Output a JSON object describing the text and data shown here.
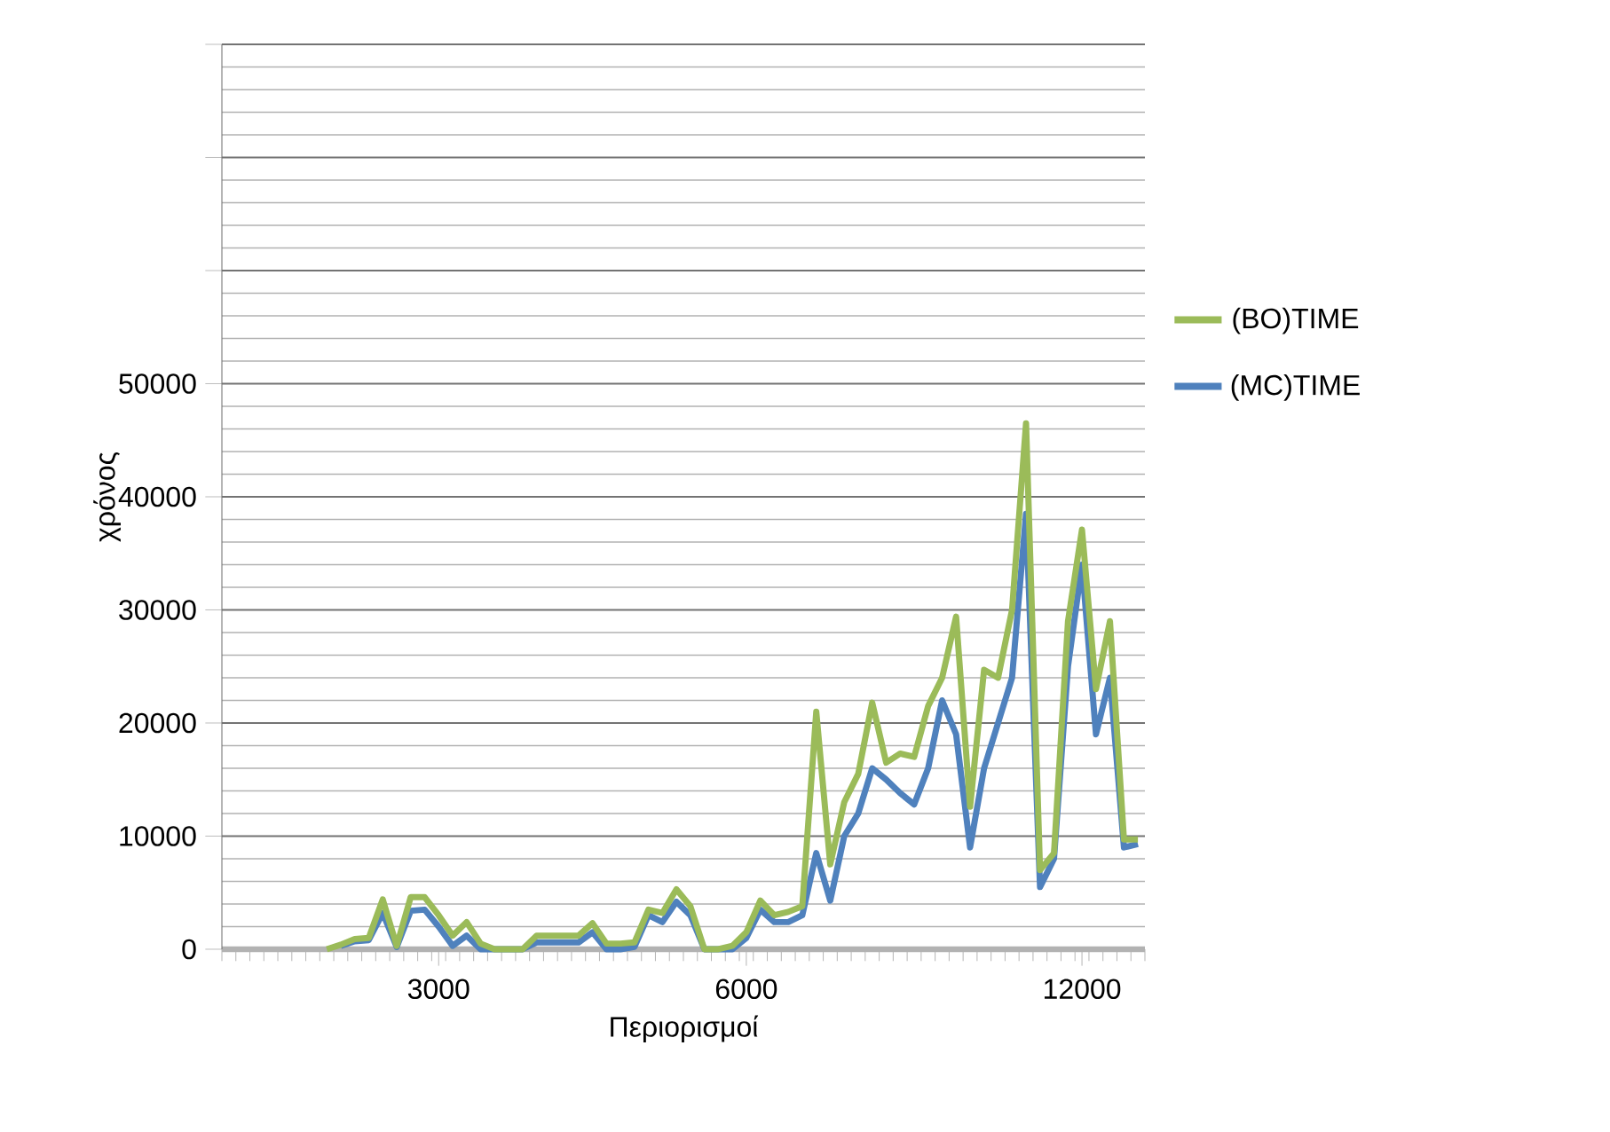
{
  "chart_data": {
    "type": "line",
    "xlabel": "Περιορισμοί",
    "ylabel": "χρόνος",
    "categories": [
      null,
      null,
      null,
      null,
      null,
      null,
      null,
      null,
      null,
      null,
      null,
      null,
      null,
      null,
      null,
      "3000",
      null,
      null,
      null,
      null,
      null,
      null,
      null,
      null,
      null,
      null,
      null,
      null,
      null,
      null,
      null,
      null,
      null,
      null,
      null,
      null,
      null,
      "6000",
      null,
      null,
      null,
      null,
      null,
      null,
      null,
      null,
      null,
      null,
      null,
      null,
      null,
      null,
      null,
      null,
      null,
      null,
      null,
      null,
      null,
      null,
      null,
      "12000",
      null,
      null,
      null,
      null
    ],
    "series": [
      {
        "name": "(BO)TIME",
        "color": "#9bbb59",
        "values": [
          null,
          null,
          null,
          null,
          null,
          null,
          null,
          0,
          400,
          900,
          1000,
          4400,
          300,
          4600,
          4600,
          3000,
          1200,
          2400,
          500,
          0,
          0,
          0,
          1200,
          1200,
          1200,
          1200,
          2300,
          500,
          500,
          600,
          3500,
          3200,
          5300,
          3800,
          0,
          0,
          300,
          1500,
          4300,
          3000,
          3300,
          3800,
          21000,
          7500,
          13000,
          15500,
          21800,
          16500,
          17300,
          17000,
          21500,
          24000,
          29400,
          12600,
          24700,
          24000,
          30000,
          46500,
          7000,
          8500,
          29000,
          37100,
          23000,
          29000,
          9700,
          9700
        ]
      },
      {
        "name": "(MC)TIME",
        "color": "#4f81bd",
        "values": [
          null,
          null,
          null,
          null,
          null,
          null,
          null,
          null,
          300,
          700,
          800,
          3200,
          200,
          3400,
          3500,
          2000,
          300,
          1200,
          0,
          0,
          0,
          0,
          600,
          600,
          600,
          600,
          1500,
          0,
          0,
          200,
          3000,
          2400,
          4200,
          3000,
          0,
          0,
          0,
          1000,
          3500,
          2400,
          2400,
          3000,
          8500,
          4300,
          10000,
          12000,
          16000,
          15000,
          13800,
          12800,
          16000,
          22000,
          19000,
          9000,
          16000,
          20000,
          24000,
          38500,
          5500,
          8000,
          25000,
          34000,
          19000,
          24000,
          9000,
          9300
        ]
      }
    ],
    "ylim": [
      0,
      80000
    ],
    "yticks": [
      0,
      10000,
      20000,
      30000,
      40000,
      50000,
      {
        "value": 60000,
        "label": null
      },
      {
        "value": 70000,
        "label": null
      },
      {
        "value": 80000,
        "label": null
      }
    ],
    "grid": "y",
    "legend": "right",
    "marker": "none",
    "line_style": "solid"
  }
}
